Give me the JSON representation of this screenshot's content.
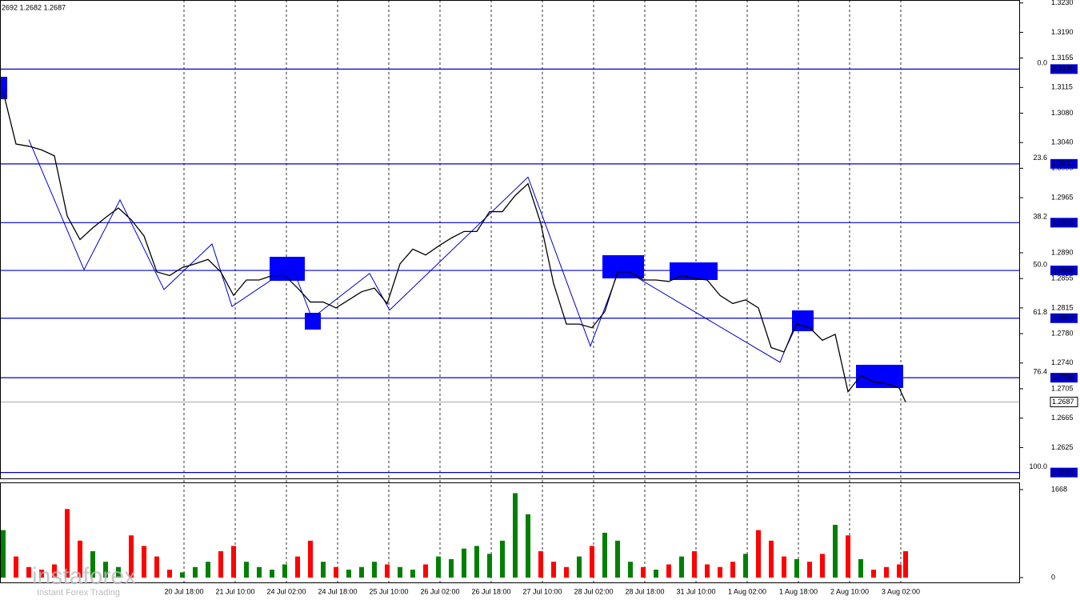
{
  "chart_data": {
    "type": "line",
    "header": "2692 1.2682 1.2687",
    "watermark": "instaforex",
    "watermark_sub": "Instant Forex Trading",
    "xlim": [
      0,
      318.75
    ],
    "xticks": [
      {
        "value": 57.5,
        "label": "20 Jul 18:00"
      },
      {
        "value": 73.5,
        "label": "21 Jul 10:00"
      },
      {
        "value": 89.5,
        "label": "24 Jul 02:00"
      },
      {
        "value": 105.5,
        "label": "24 Jul 18:00"
      },
      {
        "value": 121.5,
        "label": "25 Jul 10:00"
      },
      {
        "value": 137.5,
        "label": "26 Jul 02:00"
      },
      {
        "value": 153.5,
        "label": "26 Jul 18:00"
      },
      {
        "value": 169.5,
        "label": "27 Jul 10:00"
      },
      {
        "value": 185.5,
        "label": "28 Jul 02:00"
      },
      {
        "value": 201.5,
        "label": "28 Jul 18:00"
      },
      {
        "value": 217.5,
        "label": "31 Jul 10:00"
      },
      {
        "value": 233.5,
        "label": "1 Aug 02:00"
      },
      {
        "value": 249.5,
        "label": "1 Aug 18:00"
      },
      {
        "value": 265.5,
        "label": "2 Aug 10:00"
      },
      {
        "value": 281.5,
        "label": "3 Aug 02:00"
      }
    ],
    "ylim": [
      1.2583,
      1.3234
    ],
    "yticks": [
      {
        "value": 1.323,
        "label": "1.3230"
      },
      {
        "value": 1.319,
        "label": "1.3190"
      },
      {
        "value": 1.3155,
        "label": "1.3155"
      },
      {
        "value": 1.3115,
        "label": "1.3115"
      },
      {
        "value": 1.308,
        "label": "1.3080"
      },
      {
        "value": 1.304,
        "label": "1.3040"
      },
      {
        "value": 1.3005,
        "label": "1.3005"
      },
      {
        "value": 1.2965,
        "label": "1.2965"
      },
      {
        "value": 1.289,
        "label": "1.2890"
      },
      {
        "value": 1.2855,
        "label": "1.2855"
      },
      {
        "value": 1.2815,
        "label": "1.2815"
      },
      {
        "value": 1.278,
        "label": "1.2780"
      },
      {
        "value": 1.274,
        "label": "1.2740"
      },
      {
        "value": 1.2705,
        "label": "1.2705"
      },
      {
        "value": 1.2665,
        "label": "1.2665"
      },
      {
        "value": 1.2625,
        "label": "1.2625"
      }
    ],
    "levels": [
      {
        "name": "0.0",
        "value": 1.314,
        "label": "1.3140"
      },
      {
        "name": "23.6",
        "value": 1.3011,
        "label": "1.3011"
      },
      {
        "name": "38.2",
        "value": 1.2931,
        "label": "1.2931"
      },
      {
        "name": "50.0",
        "value": 1.2866,
        "label": "1.2866"
      },
      {
        "name": "61.8",
        "value": 1.2801,
        "label": "1.2801"
      },
      {
        "name": "76.4",
        "value": 1.272,
        "label": "1.2720"
      },
      {
        "name": "100.0",
        "value": 1.2591,
        "label": "1.2591"
      }
    ],
    "level_color": "#0000cc",
    "current_price": {
      "value": 1.2687,
      "label": "1.2687"
    },
    "price": {
      "color": "#000000",
      "x": [
        1,
        5,
        9,
        13,
        17,
        21,
        25,
        29,
        33,
        37,
        41,
        45,
        49,
        53,
        57,
        61,
        65,
        69,
        73,
        77,
        81,
        85,
        89,
        93,
        97,
        101,
        105,
        109,
        113,
        117,
        121,
        125,
        129,
        133,
        137,
        141,
        145,
        149,
        153,
        157,
        161,
        165,
        169,
        173,
        177,
        181,
        185,
        189,
        193,
        197,
        201,
        205,
        209,
        213,
        217,
        221,
        225,
        229,
        233,
        237,
        241,
        245,
        249,
        253,
        257,
        261,
        265,
        269,
        273,
        277,
        281,
        283
      ],
      "values": [
        1.3109,
        1.3038,
        1.3035,
        1.303,
        1.3022,
        1.294,
        1.2908,
        1.2924,
        1.2938,
        1.2951,
        1.2935,
        1.2913,
        1.2864,
        1.2859,
        1.287,
        1.2875,
        1.2881,
        1.2864,
        1.2832,
        1.2853,
        1.2853,
        1.2859,
        1.2859,
        1.2842,
        1.2823,
        1.2823,
        1.2815,
        1.2826,
        1.2837,
        1.2842,
        1.2821,
        1.2875,
        1.2895,
        1.2887,
        1.2899,
        1.291,
        1.2919,
        1.2919,
        1.2946,
        1.2946,
        1.2968,
        1.2984,
        1.293,
        1.2848,
        1.2793,
        1.2793,
        1.2788,
        1.281,
        1.2864,
        1.2864,
        1.2853,
        1.2853,
        1.2851,
        1.2859,
        1.2855,
        1.2853,
        1.2832,
        1.2821,
        1.2826,
        1.2815,
        1.2761,
        1.2755,
        1.2793,
        1.2788,
        1.2771,
        1.2779,
        1.2701,
        1.2723,
        1.2714,
        1.2712,
        1.2706,
        1.2687
      ]
    },
    "zigzag": {
      "color": "#0000cc",
      "x": [
        9,
        26.25,
        37.5,
        51.25,
        66.25,
        72.5,
        91.25,
        97.5,
        115.5,
        121.75,
        165,
        184.5,
        193.75,
        243.75,
        250
      ],
      "values": [
        1.3044,
        1.2867,
        1.2962,
        1.284,
        1.2902,
        1.2817,
        1.2872,
        1.2801,
        1.2862,
        1.2812,
        1.2993,
        1.2763,
        1.287,
        1.2741,
        1.2808
      ]
    },
    "volume": {
      "up_color": "#008000",
      "down_color": "#ff0000",
      "ylim": [
        -91,
        1789
      ],
      "yticks": [
        1668,
        0
      ],
      "values": [
        900,
        400,
        200,
        150,
        250,
        1300,
        700,
        500,
        300,
        200,
        800,
        600,
        400,
        150,
        100,
        200,
        300,
        500,
        600,
        300,
        200,
        150,
        250,
        400,
        700,
        300,
        200,
        150,
        200,
        300,
        250,
        200,
        150,
        250,
        400,
        350,
        550,
        600,
        450,
        700,
        1600,
        1200,
        500,
        300,
        200,
        400,
        600,
        850,
        700,
        300,
        200,
        150,
        250,
        400,
        500,
        250,
        200,
        300,
        450,
        900,
        700,
        400,
        350,
        300,
        450,
        1000,
        800,
        350,
        150,
        200,
        250,
        500
      ]
    }
  }
}
